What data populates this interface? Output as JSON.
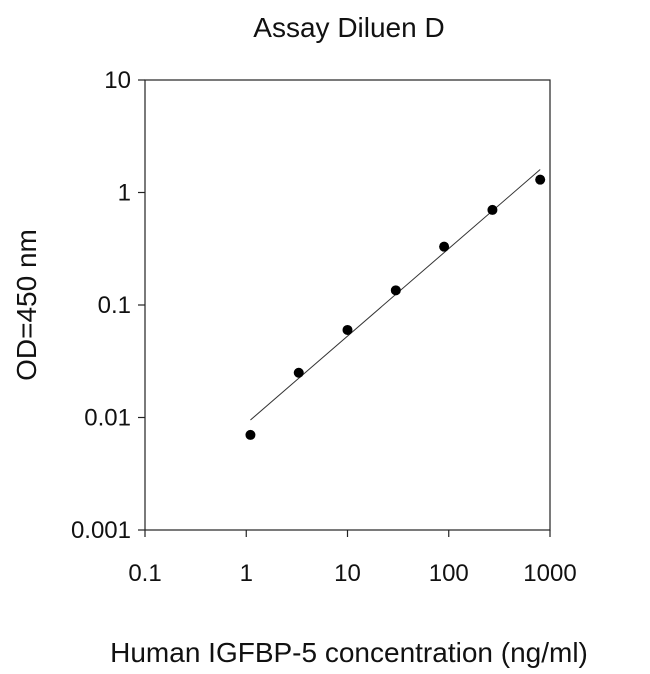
{
  "chart_data": {
    "type": "scatter",
    "title": "Assay Diluen D",
    "xlabel": "Human IGFBP-5 concentration (ng/ml)",
    "ylabel": "OD=450 nm",
    "xscale": "log",
    "yscale": "log",
    "xlim": [
      0.1,
      1000
    ],
    "ylim": [
      0.001,
      10
    ],
    "xticks": [
      0.1,
      1,
      10,
      100,
      1000
    ],
    "xtick_labels": [
      "0.1",
      "1",
      "10",
      "100",
      "1000"
    ],
    "yticks": [
      0.001,
      0.01,
      0.1,
      1,
      10
    ],
    "ytick_labels": [
      "0.001",
      "0.01",
      "0.1",
      "1",
      "10"
    ],
    "grid": false,
    "legend": false,
    "series": [
      {
        "x": [
          1.1,
          3.3,
          10,
          30,
          90,
          270,
          800
        ],
        "y": [
          0.007,
          0.025,
          0.06,
          0.135,
          0.33,
          0.7,
          1.3
        ]
      }
    ],
    "trendline": {
      "x": [
        1.1,
        800
      ],
      "y": [
        0.0095,
        1.6
      ]
    }
  }
}
